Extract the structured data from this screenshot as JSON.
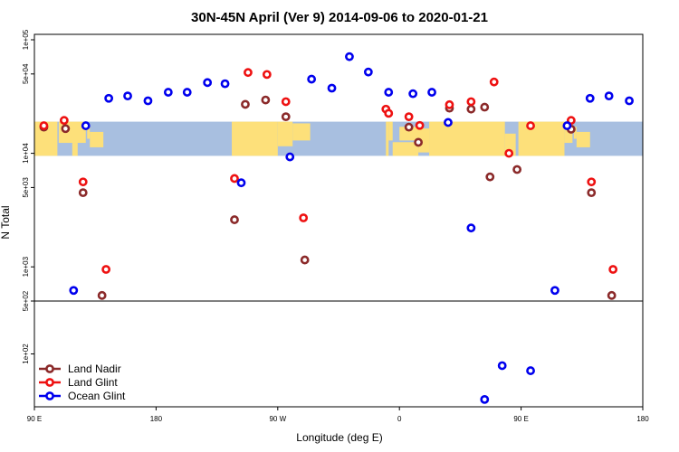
{
  "chart_data": {
    "type": "scatter",
    "title": "30N-45N April (Ver 9)   2014-09-06 to 2020-01-21",
    "xlabel": "Longitude (deg E)",
    "ylabel": "N Total",
    "x_ticks": [
      {
        "value": 90,
        "label": "90 E"
      },
      {
        "value": 180,
        "label": "180"
      },
      {
        "value": 270,
        "label": "90 W"
      },
      {
        "value": 360,
        "label": "0"
      },
      {
        "value": 450,
        "label": "90 E"
      },
      {
        "value": 540,
        "label": "180"
      }
    ],
    "xlim": [
      90,
      540
    ],
    "y_scale": "log (two panels)",
    "upper_panel": {
      "ylim": [
        500,
        100000
      ],
      "ticks": [
        {
          "value": 500,
          "label": "5e+02"
        },
        {
          "value": 1000,
          "label": "1e+03"
        },
        {
          "value": 5000,
          "label": "5e+03"
        },
        {
          "value": 10000,
          "label": "1e+04"
        },
        {
          "value": 50000,
          "label": "5e+04"
        },
        {
          "value": 100000,
          "label": "1e+05"
        }
      ],
      "map_band_ylim": [
        9500,
        19000
      ]
    },
    "lower_panel": {
      "ylim": [
        20,
        500
      ],
      "ticks": [
        {
          "value": 100,
          "label": "1e+02"
        }
      ]
    },
    "series": [
      {
        "name": "Land Nadir",
        "color": "#8b2a2a",
        "points": [
          [
            97,
            17000
          ],
          [
            113,
            16500
          ],
          [
            126,
            4500
          ],
          [
            140,
            560
          ],
          [
            238,
            2600
          ],
          [
            246,
            27000
          ],
          [
            261,
            29500
          ],
          [
            276,
            21000
          ],
          [
            290,
            1150
          ],
          [
            367,
            17000
          ],
          [
            374,
            12500
          ],
          [
            397,
            25000
          ],
          [
            413,
            24500
          ],
          [
            427,
            6200
          ],
          [
            423,
            25500
          ],
          [
            447,
            7200
          ],
          [
            487,
            16300
          ],
          [
            502,
            4500
          ],
          [
            517,
            560
          ]
        ]
      },
      {
        "name": "Land Glint",
        "color": "#ee1111",
        "points": [
          [
            97,
            17500
          ],
          [
            112,
            19500
          ],
          [
            126,
            5600
          ],
          [
            143,
            950
          ],
          [
            238,
            6000
          ],
          [
            248,
            51500
          ],
          [
            262,
            49500
          ],
          [
            276,
            28500
          ],
          [
            289,
            2700
          ],
          [
            350,
            24500
          ],
          [
            352,
            22500
          ],
          [
            367,
            21000
          ],
          [
            375,
            17600
          ],
          [
            397,
            26800
          ],
          [
            413,
            28500
          ],
          [
            430,
            42500
          ],
          [
            441,
            10000
          ],
          [
            457,
            17500
          ],
          [
            487,
            19500
          ],
          [
            502,
            5600
          ],
          [
            518,
            950
          ]
        ]
      },
      {
        "name": "Ocean Glint",
        "color": "#0000ee",
        "points": [
          [
            119,
            620
          ],
          [
            128,
            17500
          ],
          [
            145,
            30500
          ],
          [
            159,
            32000
          ],
          [
            174,
            29000
          ],
          [
            189,
            34500
          ],
          [
            203,
            34500
          ],
          [
            218,
            42000
          ],
          [
            231,
            41000
          ],
          [
            243,
            5500
          ],
          [
            279,
            9300
          ],
          [
            295,
            45000
          ],
          [
            310,
            37500
          ],
          [
            323,
            71000
          ],
          [
            337,
            52000
          ],
          [
            352,
            34500
          ],
          [
            370,
            33500
          ],
          [
            384,
            34500
          ],
          [
            396,
            18700
          ],
          [
            413,
            2200
          ],
          [
            423,
            25
          ],
          [
            436,
            70
          ],
          [
            457,
            60
          ],
          [
            475,
            620
          ],
          [
            484,
            17500
          ],
          [
            501,
            30500
          ],
          [
            515,
            32000
          ],
          [
            530,
            29000
          ]
        ]
      }
    ],
    "legend": {
      "position": "bottom-left",
      "entries": [
        "Land Nadir",
        "Land Glint",
        "Ocean Glint"
      ]
    },
    "colors": {
      "map_ocean": "#a8bfe0",
      "map_land": "#fde07a",
      "grid_line": "#000000"
    }
  }
}
